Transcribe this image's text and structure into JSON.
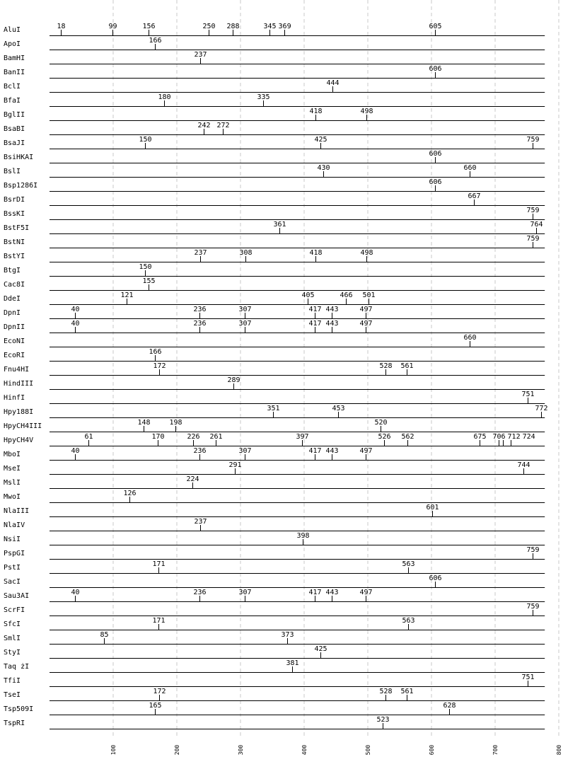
{
  "axis": {
    "ticks": [
      100,
      200,
      300,
      400,
      500,
      600,
      700,
      800
    ],
    "range": [
      0,
      800
    ],
    "sequence_length": 778,
    "grid": true
  },
  "enzymes": [
    {
      "name": "AluI",
      "sites": [
        18,
        99,
        156,
        250,
        288,
        345,
        369,
        605
      ]
    },
    {
      "name": "ApoI",
      "sites": [
        166
      ]
    },
    {
      "name": "BamHI",
      "sites": [
        237
      ]
    },
    {
      "name": "BanII",
      "sites": [
        606
      ]
    },
    {
      "name": "BclI",
      "sites": [
        444
      ]
    },
    {
      "name": "BfaI",
      "sites": [
        180,
        335
      ]
    },
    {
      "name": "BglII",
      "sites": [
        418,
        498
      ]
    },
    {
      "name": "BsaBI",
      "sites": [
        242,
        272
      ]
    },
    {
      "name": "BsaJI",
      "sites": [
        150,
        425,
        759
      ]
    },
    {
      "name": "BsiHKAI",
      "sites": [
        606
      ]
    },
    {
      "name": "BslI",
      "sites": [
        430,
        660
      ]
    },
    {
      "name": "Bsp1286I",
      "sites": [
        606
      ]
    },
    {
      "name": "BsrDI",
      "sites": [
        667
      ]
    },
    {
      "name": "BssKI",
      "sites": [
        759
      ]
    },
    {
      "name": "BstF5I",
      "sites": [
        361,
        764
      ]
    },
    {
      "name": "BstNI",
      "sites": [
        759
      ]
    },
    {
      "name": "BstYI",
      "sites": [
        237,
        308,
        418,
        498
      ]
    },
    {
      "name": "BtgI",
      "sites": [
        150
      ]
    },
    {
      "name": "Cac8I",
      "sites": [
        155
      ]
    },
    {
      "name": "DdeI",
      "sites": [
        121,
        405,
        466,
        501
      ]
    },
    {
      "name": "DpnI",
      "sites": [
        40,
        236,
        307,
        417,
        443,
        497
      ]
    },
    {
      "name": "DpnII",
      "sites": [
        40,
        236,
        307,
        417,
        443,
        497
      ]
    },
    {
      "name": "EcoNI",
      "sites": [
        660
      ]
    },
    {
      "name": "EcoRI",
      "sites": [
        166
      ]
    },
    {
      "name": "Fnu4HI",
      "sites": [
        172,
        528,
        561
      ]
    },
    {
      "name": "HindIII",
      "sites": [
        289
      ]
    },
    {
      "name": "HinfI",
      "sites": [
        751
      ]
    },
    {
      "name": "Hpy188I",
      "sites": [
        351,
        453,
        772
      ]
    },
    {
      "name": "HpyCH4III",
      "sites": [
        148,
        198,
        520
      ]
    },
    {
      "name": "HpyCH4V",
      "sites": [
        61,
        170,
        226,
        261,
        397,
        526,
        562,
        675,
        706,
        712,
        724
      ]
    },
    {
      "name": "MboI",
      "sites": [
        40,
        236,
        307,
        417,
        443,
        497
      ]
    },
    {
      "name": "MseI",
      "sites": [
        291,
        744
      ]
    },
    {
      "name": "MslI",
      "sites": [
        224
      ]
    },
    {
      "name": "MwoI",
      "sites": [
        126
      ]
    },
    {
      "name": "NlaIII",
      "sites": [
        601
      ]
    },
    {
      "name": "NlaIV",
      "sites": [
        237
      ]
    },
    {
      "name": "NsiI",
      "sites": [
        398
      ]
    },
    {
      "name": "PspGI",
      "sites": [
        759
      ]
    },
    {
      "name": "PstI",
      "sites": [
        171,
        563
      ]
    },
    {
      "name": "SacI",
      "sites": [
        606
      ]
    },
    {
      "name": "Sau3AI",
      "sites": [
        40,
        236,
        307,
        417,
        443,
        497
      ]
    },
    {
      "name": "ScrFI",
      "sites": [
        759
      ]
    },
    {
      "name": "SfcI",
      "sites": [
        171,
        563
      ]
    },
    {
      "name": "SmlI",
      "sites": [
        85,
        373
      ]
    },
    {
      "name": "StyI",
      "sites": [
        425
      ]
    },
    {
      "name": "Taq żI",
      "sites": [
        381
      ]
    },
    {
      "name": "TfiI",
      "sites": [
        751
      ]
    },
    {
      "name": "TseI",
      "sites": [
        172,
        528,
        561
      ]
    },
    {
      "name": "Tsp509I",
      "sites": [
        165,
        628
      ]
    },
    {
      "name": "TspRI",
      "sites": [
        523
      ]
    }
  ],
  "colors": {
    "line": "#000000",
    "grid": "#c8c8c8",
    "text": "#000000"
  }
}
